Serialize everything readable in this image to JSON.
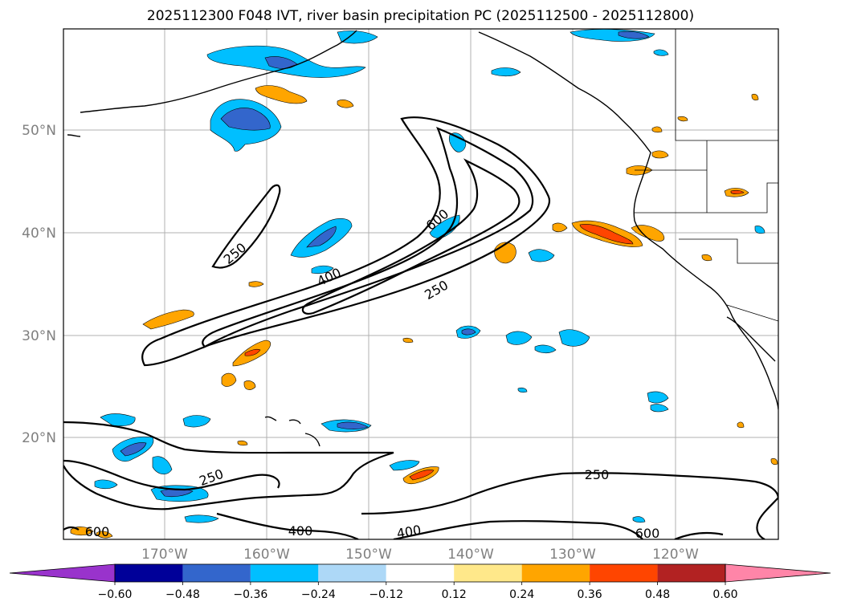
{
  "title": "2025112300 F048 IVT, river basin precipitation PC (2025112500 - 2025112800)",
  "lat_labels": [
    "50°N",
    "40°N",
    "30°N",
    "20°N"
  ],
  "lon_labels": [
    "170°W",
    "160°W",
    "150°W",
    "140°W",
    "130°W",
    "120°W"
  ],
  "ivt_contour_levels": [
    "250",
    "400",
    "600"
  ],
  "contour_labels": [
    "250",
    "400",
    "600",
    "250",
    "250",
    "250",
    "400",
    "400",
    "600",
    "600"
  ],
  "colorbar": {
    "colors": [
      "#9933cc",
      "#000099",
      "#3366cc",
      "#00bfff",
      "#add8f7",
      "#ffffff",
      "#ffe88a",
      "#ffa500",
      "#ff4500",
      "#b22222",
      "#ff85a8"
    ],
    "ticks": [
      "−0.60",
      "−0.48",
      "−0.36",
      "−0.24",
      "−0.12",
      "0.12",
      "0.24",
      "0.36",
      "0.48",
      "0.60"
    ]
  }
}
